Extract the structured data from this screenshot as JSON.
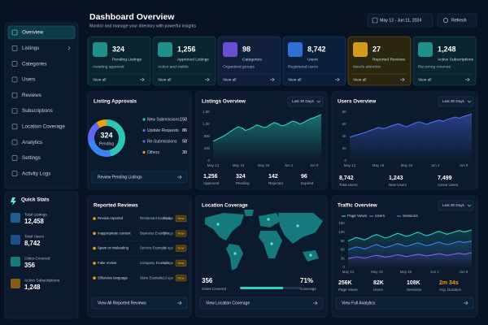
{
  "sidebar": {
    "nav": [
      "Overview",
      "Listings",
      "Categories",
      "Users",
      "Reviews",
      "Subscriptions",
      "Location Coverage",
      "Analytics",
      "Settings",
      "Activity Logs"
    ],
    "quick_stats": {
      "title": "Quick Stats",
      "items": [
        {
          "label": "Total Listings",
          "value": "12,458"
        },
        {
          "label": "Total Users",
          "value": "8,742"
        },
        {
          "label": "Cities Covered",
          "value": "356"
        },
        {
          "label": "Active Subscriptions",
          "value": "1,248"
        }
      ]
    }
  },
  "header": {
    "title": "Dashboard Overview",
    "subtitle": "Monitor and manage your directory with powerful insights",
    "date_range": "May 12 - Jun 11, 2024",
    "refresh": "Refresh"
  },
  "stat_cards": [
    {
      "value": "324",
      "label": "Pending Listings",
      "note": "Awaiting approval",
      "link": "View all"
    },
    {
      "value": "1,256",
      "label": "Approved Listings",
      "note": "Active and visible",
      "link": "View all"
    },
    {
      "value": "98",
      "label": "Categories",
      "note": "Organized groups",
      "link": "View all"
    },
    {
      "value": "8,742",
      "label": "Users",
      "note": "Registered users",
      "link": "View all"
    },
    {
      "value": "27",
      "label": "Reported Reviews",
      "note": "Needs attention",
      "link": "View all"
    },
    {
      "value": "1,248",
      "label": "Active Subscriptions",
      "note": "Recurring revenue",
      "link": "View all"
    }
  ],
  "listing_approvals": {
    "title": "Listing Approvals",
    "center_value": "324",
    "center_label": "Pending",
    "button": "Review Pending Listings"
  },
  "chart_data": [
    {
      "type": "pie",
      "categories": [
        "New Submissions",
        "Update Requests",
        "Re-Submissions",
        "Others"
      ],
      "values": [
        150,
        86,
        58,
        30
      ],
      "colors": [
        "#2ec4b6",
        "#3b82f6",
        "#6366f1",
        "#f59e0b"
      ]
    },
    {
      "type": "line",
      "title": "Listings Overview",
      "period": "Last 30 Days",
      "categories": [
        "May 12",
        null,
        null,
        null,
        null,
        null,
        null,
        "May 19",
        null,
        null,
        null,
        null,
        null,
        null,
        "May 26",
        null,
        null,
        null,
        null,
        null,
        null,
        "Jun 2",
        null,
        null,
        null,
        null,
        null,
        null,
        "Jun 9",
        null,
        null
      ],
      "values": [
        640,
        700,
        760,
        820,
        900,
        980,
        1060,
        1120,
        1080,
        1000,
        1040,
        1100,
        1180,
        1150,
        1090,
        1120,
        1200,
        1260,
        1220,
        1150,
        1180,
        1240,
        1300,
        1280,
        1210,
        1250,
        1320,
        1380,
        1420,
        1470,
        1520
      ],
      "color": "#2dd4bf",
      "ylim": [
        0,
        1600
      ],
      "yticks": [
        0,
        400,
        800,
        {
          "value": 1200,
          "label": "1.2K"
        },
        {
          "value": 1600,
          "label": "1.6K"
        }
      ],
      "grid": true,
      "stats": [
        {
          "value": "1,256",
          "label": "Approved"
        },
        {
          "value": "324",
          "label": "Pending"
        },
        {
          "value": "142",
          "label": "Rejected"
        },
        {
          "value": "96",
          "label": "Expired"
        }
      ]
    },
    {
      "type": "line",
      "title": "Users Overview",
      "period": "Last 30 Days",
      "categories": [
        "May 12",
        null,
        null,
        null,
        null,
        null,
        null,
        "May 19",
        null,
        null,
        null,
        null,
        null,
        null,
        "May 26",
        null,
        null,
        null,
        null,
        null,
        null,
        "Jun 2",
        null,
        null,
        null,
        null,
        null,
        null,
        "Jun 9",
        null,
        null
      ],
      "values": [
        3900,
        4100,
        4300,
        4500,
        4700,
        5000,
        5200,
        5500,
        5300,
        5400,
        5700,
        5900,
        6100,
        5800,
        5600,
        5900,
        6200,
        6400,
        6200,
        6000,
        6300,
        6500,
        6700,
        6500,
        6800,
        7000,
        7200,
        7000,
        7300,
        7500,
        7700
      ],
      "color": "#4f6ef7",
      "ylim": [
        0,
        8000
      ],
      "yticks": [
        0,
        {
          "value": 2000,
          "label": "2K"
        },
        {
          "value": 4000,
          "label": "4K"
        },
        {
          "value": 6000,
          "label": "6K"
        },
        {
          "value": 8000,
          "label": "8K"
        }
      ],
      "grid": true,
      "stats": [
        {
          "value": "8,742",
          "label": "Total Users"
        },
        {
          "value": "1,243",
          "label": "New Users"
        },
        {
          "value": "7,499",
          "label": "Active Users"
        }
      ]
    },
    {
      "type": "line",
      "title": "Traffic Overview",
      "period": "Last 30 Days",
      "categories": [
        "May 12",
        null,
        null,
        null,
        null,
        null,
        null,
        "May 19",
        null,
        null,
        null,
        null,
        null,
        null,
        "May 26",
        null,
        null,
        null,
        null,
        null,
        null,
        "Jun 2",
        null,
        null,
        null,
        null,
        null,
        null,
        "Jun 9",
        null,
        null
      ],
      "series": [
        {
          "name": "Page Views",
          "color": "#2dd4bf",
          "values": [
            9000,
            9600,
            10200,
            9800,
            9400,
            10000,
            10800,
            11200,
            10600,
            10000,
            10400,
            11000,
            11600,
            11200,
            10600,
            10900,
            11500,
            12000,
            11400,
            10800,
            11200,
            11800,
            12300,
            11800,
            11300,
            11700,
            12200,
            12600,
            12100,
            12400,
            12800
          ]
        },
        {
          "name": "Users",
          "color": "#3b82f6",
          "values": [
            6000,
            6500,
            7000,
            6700,
            6300,
            6800,
            7400,
            7800,
            7200,
            6800,
            7100,
            7600,
            8100,
            7700,
            7200,
            7500,
            8000,
            8400,
            7900,
            7400,
            7700,
            8200,
            8600,
            8200,
            7800,
            8100,
            8500,
            8900,
            8500,
            8700,
            9000
          ]
        },
        {
          "name": "Sessions",
          "color": "#8b5cf6",
          "values": [
            3000,
            3300,
            3600,
            3400,
            3200,
            3500,
            3900,
            4100,
            3800,
            3500,
            3700,
            4000,
            4300,
            4000,
            3700,
            3900,
            4200,
            4500,
            4200,
            3900,
            4100,
            4400,
            4700,
            4400,
            4100,
            4300,
            4600,
            4800,
            4500,
            4700,
            5000
          ]
        }
      ],
      "ylim": [
        0,
        15000
      ],
      "yticks": [
        0,
        {
          "value": 3000,
          "label": "3K"
        },
        {
          "value": 6000,
          "label": "6K"
        },
        {
          "value": 9000,
          "label": "9K"
        },
        {
          "value": 12000,
          "label": "12K"
        },
        {
          "value": 15000,
          "label": "15K"
        }
      ],
      "grid": true,
      "stats": [
        {
          "value": "256K",
          "label": "Page Views"
        },
        {
          "value": "82K",
          "label": "Users"
        },
        {
          "value": "108K",
          "label": "Sessions"
        },
        {
          "value": "2m 34s",
          "label": "Avg. Duration"
        }
      ],
      "button": "View Full Analytics"
    }
  ],
  "reported_reviews": {
    "title": "Reported Reviews",
    "items": [
      {
        "reason": "Review reported",
        "target": "Restaurant Example",
        "time": "2h ago",
        "badge": "New"
      },
      {
        "reason": "Inappropriate content",
        "target": "Business Example",
        "time": "5h ago",
        "badge": "New"
      },
      {
        "reason": "Spam or misleading",
        "target": "Service Example",
        "time": "1d ago",
        "badge": "New"
      },
      {
        "reason": "Fake review",
        "target": "Company Example",
        "time": "1d ago",
        "badge": "New"
      },
      {
        "reason": "Offensive language",
        "target": "Store Example",
        "time": "2d ago",
        "badge": "New"
      }
    ],
    "button": "View All Reported Reviews"
  },
  "location_coverage": {
    "title": "Location Coverage",
    "cities_value": "356",
    "cities_label": "Cities Covered",
    "coverage": {
      "value": 71,
      "label": "71%"
    },
    "coverage_label": "Coverage",
    "button": "View Location Coverage"
  }
}
